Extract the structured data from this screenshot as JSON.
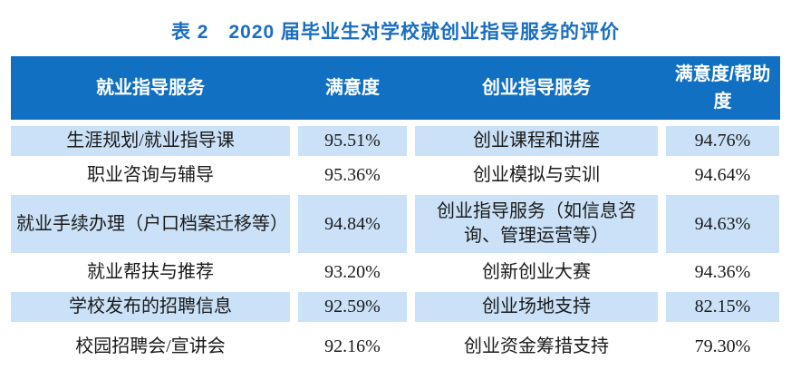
{
  "title": "表 2　2020 届毕业生对学校就创业指导服务的评价",
  "colors": {
    "header_bg": "#1270c2",
    "shaded_row_bg": "#cae1f7",
    "title_color": "#1a6ec0",
    "header_text": "#ffffff",
    "body_text": "#1a1a1a"
  },
  "table": {
    "headers": [
      "就业指导服务",
      "满意度",
      "创业指导服务",
      "满意度/帮助度"
    ],
    "rows": [
      {
        "c1": "生涯规划/就业指导课",
        "c2": "95.51%",
        "c3": "创业课程和讲座",
        "c4": "94.76%"
      },
      {
        "c1": "职业咨询与辅导",
        "c2": "95.36%",
        "c3": "创业模拟与实训",
        "c4": "94.64%"
      },
      {
        "c1": "就业手续办理（户口档案迁移等）",
        "c2": "94.84%",
        "c3": "创业指导服务（如信息咨询、管理运营等）",
        "c4": "94.63%"
      },
      {
        "c1": "就业帮扶与推荐",
        "c2": "93.20%",
        "c3": "创新创业大赛",
        "c4": "94.36%"
      },
      {
        "c1": "学校发布的招聘信息",
        "c2": "92.59%",
        "c3": "创业场地支持",
        "c4": "82.15%"
      },
      {
        "c1": "校园招聘会/宣讲会",
        "c2": "92.16%",
        "c3": "创业资金筹措支持",
        "c4": "79.30%"
      }
    ]
  }
}
